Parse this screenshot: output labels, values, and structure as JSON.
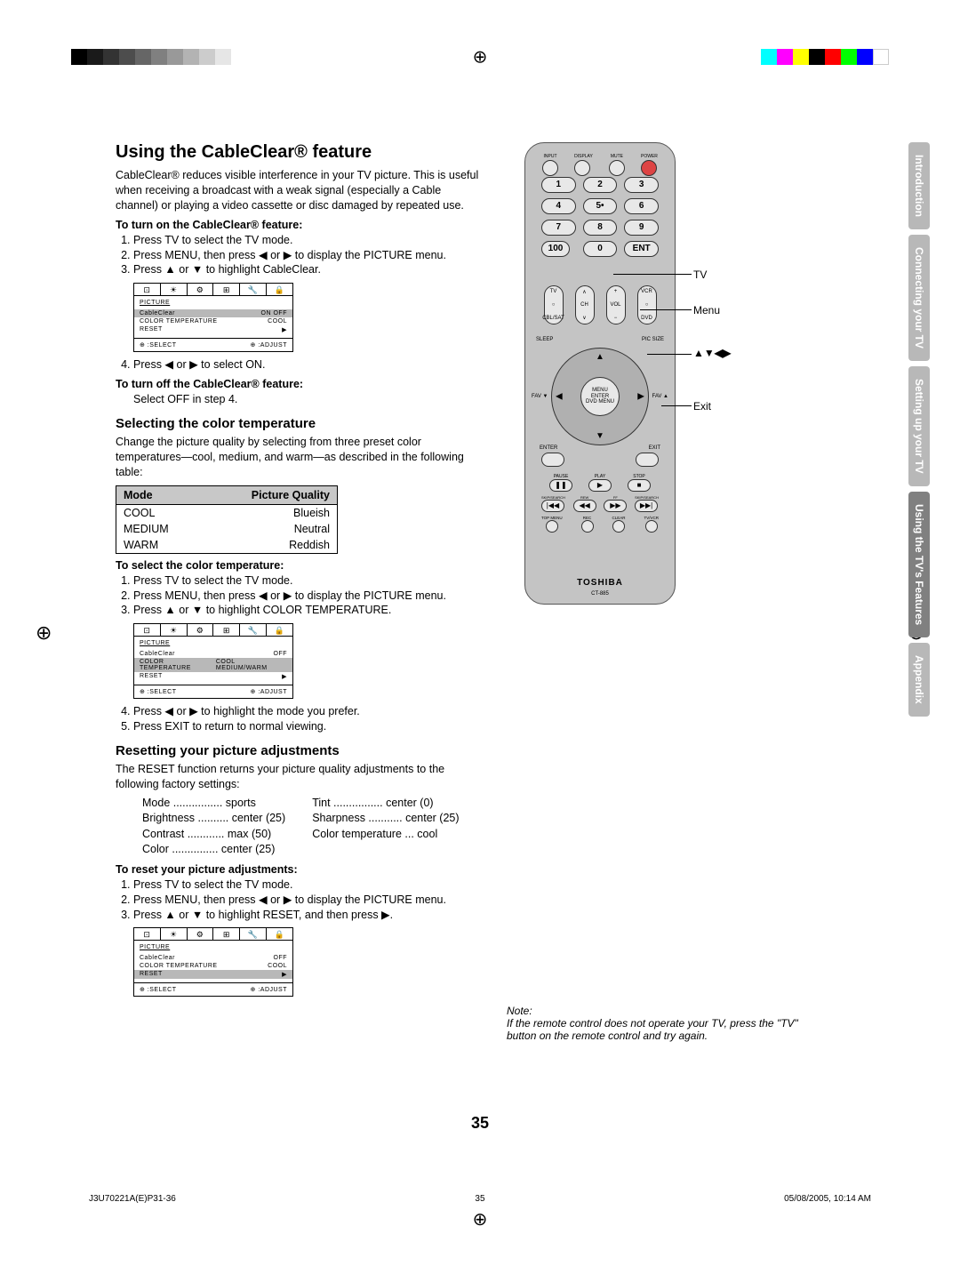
{
  "registration": {
    "grayscale": [
      "#000000",
      "#1a1a1a",
      "#333333",
      "#4d4d4d",
      "#666666",
      "#808080",
      "#999999",
      "#b3b3b3",
      "#cccccc",
      "#e6e6e6"
    ],
    "colors": [
      "#00ffff",
      "#ff00ff",
      "#ffff00",
      "#000000",
      "#ff0000",
      "#00ff00",
      "#0000ff",
      "#ffffff"
    ]
  },
  "h1": "Using the CableClear® feature",
  "intro": "CableClear® reduces visible interference in your TV picture. This is useful when receiving a broadcast with a weak signal (especially a Cable channel) or playing a video cassette or disc damaged by repeated use.",
  "turn_on_heading": "To turn on the CableClear® feature:",
  "turn_on_steps": [
    "Press TV to select the TV mode.",
    "Press MENU, then press ◀ or ▶ to display the PICTURE menu.",
    "Press ▲ or ▼ to highlight CableClear."
  ],
  "step4_on": "Press ◀ or ▶ to select ON.",
  "turn_off_heading": "To turn off the CableClear® feature:",
  "turn_off_text": "Select OFF in step 4.",
  "h2_color": "Selecting the color temperature",
  "color_intro": "Change the picture quality by selecting from three preset color temperatures—cool, medium, and warm—as described in the following table:",
  "mode_table": {
    "headers": [
      "Mode",
      "Picture Quality"
    ],
    "rows": [
      [
        "COOL",
        "Blueish"
      ],
      [
        "MEDIUM",
        "Neutral"
      ],
      [
        "WARM",
        "Reddish"
      ]
    ]
  },
  "select_color_heading": "To select the color temperature:",
  "select_color_steps": [
    "Press TV to select the TV mode.",
    "Press MENU, then press ◀ or ▶ to display the PICTURE menu.",
    "Press ▲ or ▼ to highlight COLOR TEMPERATURE."
  ],
  "step4_color": "Press ◀ or ▶ to highlight the mode you prefer.",
  "step5_color": "Press EXIT to return to normal viewing.",
  "h2_reset": "Resetting your picture adjustments",
  "reset_intro": "The RESET function returns your picture quality adjustments to the following factory settings:",
  "factory": {
    "left": [
      [
        "Mode",
        "sports"
      ],
      [
        "Brightness",
        "center (25)"
      ],
      [
        "Contrast",
        "max (50)"
      ],
      [
        "Color",
        "center (25)"
      ]
    ],
    "right": [
      [
        "Tint",
        "center (0)"
      ],
      [
        "Sharpness",
        "center (25)"
      ],
      [
        "Color temperature",
        "cool"
      ]
    ]
  },
  "reset_heading": "To reset your picture adjustments:",
  "reset_steps": [
    "Press TV to select the TV mode.",
    "Press MENU, then press ◀ or ▶ to display the PICTURE menu.",
    "Press ▲ or ▼ to highlight RESET, and then press ▶."
  ],
  "osd": {
    "title": "PICTURE",
    "tabs": [
      "⊡",
      "☀",
      "⚙",
      "⊞",
      "🔧",
      "🔒"
    ],
    "rows1": [
      [
        "CableClear",
        "ON  OFF"
      ],
      [
        "COLOR TEMPERATURE",
        "COOL"
      ],
      [
        "RESET",
        "▶"
      ]
    ],
    "rows1_hl_index": 0,
    "rows2": [
      [
        "CableClear",
        "OFF"
      ],
      [
        "COLOR TEMPERATURE",
        "COOL MEDIUM/WARM"
      ],
      [
        "RESET",
        "▶"
      ]
    ],
    "rows2_hl_index": 1,
    "rows3": [
      [
        "CableClear",
        "OFF"
      ],
      [
        "COLOR TEMPERATURE",
        "COOL"
      ],
      [
        "RESET",
        "▶"
      ]
    ],
    "rows3_hl_index": 2,
    "foot_left": "⊕ :SELECT",
    "foot_right": "⊕ :ADJUST"
  },
  "remote": {
    "top_labels": [
      "INPUT",
      "DISPLAY",
      "MUTE",
      "POWER"
    ],
    "num_labels": [
      "1",
      "2",
      "3",
      "4",
      "5•",
      "6",
      "7",
      "8",
      "9"
    ],
    "row4": [
      "100",
      "0",
      "ENT"
    ],
    "row4_sublabels": [
      "+10",
      "",
      "CH RTN"
    ],
    "mid_top": [
      "TV",
      "VCR"
    ],
    "mid": [
      "CBL/SAT",
      "CH",
      "VOL",
      "DVD"
    ],
    "side_labels": [
      "SLEEP",
      "PIC SIZE"
    ],
    "fav": [
      "FAV ▼",
      "FAV ▲"
    ],
    "center": "MENU\nENTER\nDVD MENU",
    "entry_exit": [
      "ENTER",
      "EXIT"
    ],
    "transport1": [
      "PAUSE",
      "PLAY",
      "STOP"
    ],
    "transport1_sym": [
      "❚❚",
      "▶",
      "■"
    ],
    "transport2_labels": [
      "SKIP/SEARCH",
      "REW",
      "FF",
      "SKIP/SEARCH"
    ],
    "transport2_sym": [
      "|◀◀",
      "◀◀",
      "▶▶",
      "▶▶|"
    ],
    "transport3": [
      "TOP MENU",
      "REC",
      "CLEAR",
      "TV/VCR"
    ],
    "brand": "TOSHIBA",
    "model": "CT-885"
  },
  "callouts": {
    "tv": "TV",
    "menu": "Menu",
    "arrows": "▲▼◀▶",
    "exit": "Exit"
  },
  "sidetabs": [
    "Introduction",
    "Connecting your TV",
    "Setting up your TV",
    "Using the TV's Features",
    "Appendix"
  ],
  "sidetab_active_index": 3,
  "note_title": "Note:",
  "note_body": "If the remote control does not operate your TV, press the \"TV\" button on the remote control and try again.",
  "page_number": "35",
  "footer_left": "J3U70221A(E)P31-36",
  "footer_center": "35",
  "footer_right": "05/08/2005, 10:14 AM"
}
